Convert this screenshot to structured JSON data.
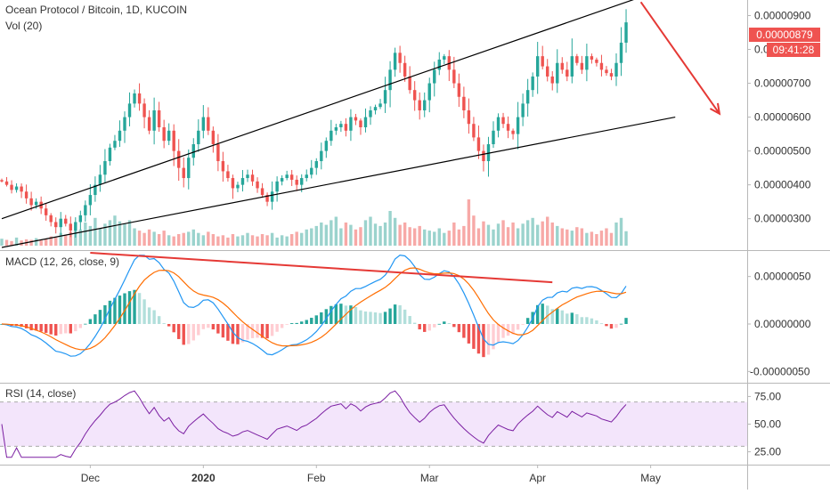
{
  "chart_data": [
    {
      "type": "candlestick",
      "title": "Ocean Protocol / Bitcoin, 1D, KUCOIN",
      "subtitle": "Vol (20)",
      "price_axis": {
        "ticks": [
          "0.00000300",
          "0.00000400",
          "0.00000500",
          "0.00000600",
          "0.00000700",
          "0.00000800",
          "0.00000900"
        ],
        "range": [
          2.15e-06,
          9.25e-06
        ],
        "last_price_label": "0.00000879",
        "countdown_label": "09:41:28"
      },
      "time_axis": {
        "ticks": [
          "Dec",
          "2020",
          "Feb",
          "Mar",
          "Apr",
          "May"
        ],
        "bold_ticks": [
          "2020"
        ]
      },
      "colors": {
        "up": "#26a69a",
        "down": "#ef5350",
        "volume_up": "#9bd3cd",
        "volume_down": "#f7a9a7",
        "trend_line": "#000000",
        "arrow": "#e53935",
        "last_price_bg": "#ef5350"
      },
      "closes": [
        4.1e-06,
        4e-06,
        3.85e-06,
        3.95e-06,
        3.8e-06,
        3.6e-06,
        3.4e-06,
        3.5e-06,
        3.3e-06,
        3.1e-06,
        2.9e-06,
        2.75e-06,
        3e-06,
        2.85e-06,
        2.65e-06,
        2.9e-06,
        3.1e-06,
        3.4e-06,
        3.7e-06,
        4e-06,
        4.3e-06,
        4.7e-06,
        5.1e-06,
        5.3e-06,
        5.6e-06,
        6e-06,
        6.4e-06,
        6.7e-06,
        6.4e-06,
        6e-06,
        5.6e-06,
        6.2e-06,
        5.7e-06,
        5.3e-06,
        5.6e-06,
        5e-06,
        4.5e-06,
        4.2e-06,
        4.8e-06,
        5.2e-06,
        5.6e-06,
        6e-06,
        5.6e-06,
        5.2e-06,
        4.7e-06,
        4.4e-06,
        4.2e-06,
        3.9e-06,
        4e-06,
        4.2e-06,
        4.3e-06,
        4.1e-06,
        3.9e-06,
        3.7e-06,
        3.5e-06,
        3.8e-06,
        4.1e-06,
        4.2e-06,
        4.3e-06,
        4.15e-06,
        4e-06,
        4.2e-06,
        4.3e-06,
        4.5e-06,
        4.7e-06,
        5e-06,
        5.3e-06,
        5.6e-06,
        5.7e-06,
        5.8e-06,
        5.6e-06,
        6e-06,
        5.9e-06,
        5.7e-06,
        6e-06,
        6.2e-06,
        6.3e-06,
        6.4e-06,
        6.8e-06,
        7.4e-06,
        7.9e-06,
        7.6e-06,
        7.2e-06,
        6.8e-06,
        6.5e-06,
        6.2e-06,
        6.5e-06,
        7e-06,
        7.4e-06,
        7.7e-06,
        7.8e-06,
        7.4e-06,
        7e-06,
        6.6e-06,
        6.2e-06,
        5.8e-06,
        5.4e-06,
        5e-06,
        4.7e-06,
        5.2e-06,
        5.6e-06,
        6e-06,
        5.8e-06,
        5.6e-06,
        5.5e-06,
        6e-06,
        6.4e-06,
        6.8e-06,
        7.2e-06,
        7.8e-06,
        7.5e-06,
        7.2e-06,
        7e-06,
        7.6e-06,
        7.4e-06,
        7.2e-06,
        7.8e-06,
        7.6e-06,
        7.4e-06,
        7.8e-06,
        7.7e-06,
        7.6e-06,
        7.4e-06,
        7.3e-06,
        7.2e-06,
        7.6e-06,
        8.2e-06,
        8.8e-06
      ],
      "volumes": [
        12,
        10,
        8,
        14,
        9,
        11,
        10,
        13,
        9,
        12,
        16,
        14,
        22,
        18,
        24,
        35,
        28,
        40,
        34,
        48,
        30,
        38,
        44,
        52,
        42,
        38,
        44,
        30,
        26,
        22,
        28,
        24,
        20,
        26,
        18,
        16,
        20,
        22,
        24,
        28,
        22,
        18,
        24,
        20,
        16,
        18,
        14,
        20,
        16,
        18,
        22,
        18,
        16,
        20,
        18,
        22,
        14,
        18,
        16,
        20,
        24,
        22,
        28,
        30,
        34,
        40,
        36,
        44,
        50,
        30,
        40,
        36,
        28,
        32,
        44,
        50,
        38,
        34,
        40,
        60,
        48,
        36,
        40,
        32,
        30,
        34,
        28,
        26,
        24,
        30,
        22,
        26,
        40,
        28,
        34,
        80,
        52,
        30,
        42,
        36,
        28,
        38,
        44,
        32,
        40,
        30,
        38,
        44,
        48,
        36,
        42,
        50,
        40,
        34,
        30,
        28,
        26,
        32,
        30,
        22,
        24,
        20,
        26,
        30,
        22,
        40,
        48,
        25
      ],
      "trend_channel": [
        {
          "from": [
            0,
            3e-06
          ],
          "to": [
            137,
            9.9e-06
          ]
        },
        {
          "from": [
            0,
            2.15e-06
          ],
          "to": [
            137,
            6e-06
          ]
        }
      ]
    },
    {
      "type": "line",
      "title": "MACD (12, 26, close, 9)",
      "y_ticks": [
        "0.00000050",
        "0.00000000",
        "-0.00000050"
      ],
      "range": [
        -6e-07,
        7.5e-07
      ],
      "colors": {
        "macd": "#2196f3",
        "signal": "#ff6d00",
        "hist_up_strong": "#26a69a",
        "hist_up_weak": "#b2dfdb",
        "hist_down_strong": "#ef5350",
        "hist_down_weak": "#ffcdd2",
        "divergence_line": "#e53935"
      },
      "divergence_line": {
        "from": [
          18,
          7.5e-07
        ],
        "to": [
          112,
          4.4e-07
        ]
      }
    },
    {
      "type": "line",
      "title": "RSI (14, close)",
      "y_ticks": [
        "75.00",
        "50.00",
        "25.00"
      ],
      "range": [
        15,
        85
      ],
      "band": [
        30,
        70
      ],
      "colors": {
        "rsi": "#7b1fa2",
        "band_fill": "#f3e5fb",
        "band_border": "#aaaaaa"
      }
    }
  ]
}
